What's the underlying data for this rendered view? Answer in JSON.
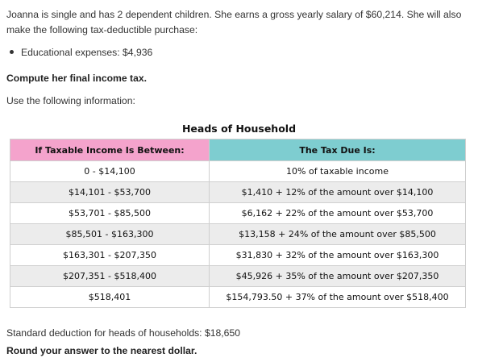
{
  "problem": {
    "intro": "Joanna is single and has 2 dependent children. She earns a gross yearly salary of $60,214.  She will also make the following tax-deductible purchase:",
    "bullets": [
      "Educational expenses: $4,936"
    ],
    "question": "Compute her final income tax.",
    "instruction": "Use the following information:"
  },
  "table": {
    "title": "Heads of Household",
    "headers": [
      "If Taxable Income Is Between:",
      "The Tax Due Is:"
    ],
    "header_colors": [
      "#f4a3cc",
      "#7ecdd0"
    ],
    "rows": [
      [
        "0 - $14,100",
        "10% of taxable income"
      ],
      [
        "$14,101 - $53,700",
        "$1,410 + 12% of the amount over $14,100"
      ],
      [
        "$53,701 - $85,500",
        "$6,162 + 22% of the amount over $53,700"
      ],
      [
        "$85,501 - $163,300",
        "$13,158 + 24% of the amount over $85,500"
      ],
      [
        "$163,301 - $207,350",
        "$31,830 + 32% of the amount over $163,300"
      ],
      [
        "$207,351 - $518,400",
        "$45,926 + 35% of the amount over $207,350"
      ],
      [
        "$518,401",
        "$154,793.50 + 37% of the amount over $518,400"
      ]
    ]
  },
  "footer": {
    "standard_deduction": "Standard deduction for heads of households: $18,650",
    "rounding_note": "Round your answer to the nearest dollar."
  }
}
